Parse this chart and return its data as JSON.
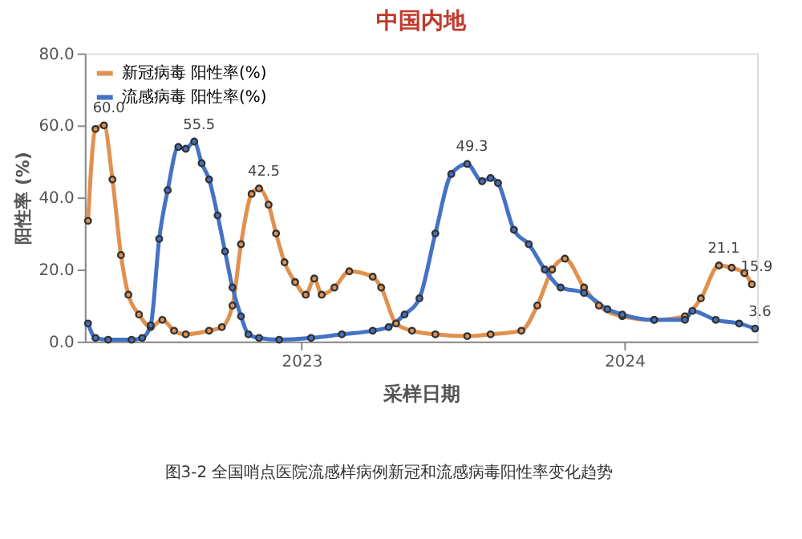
{
  "chart_data": {
    "type": "line",
    "title": "中国内地",
    "xlabel": "采样日期",
    "ylabel": "阳性率 (%)",
    "annotations": [
      "图3-2 全国哨点医院流感样病例新冠和流感病毒阳性率变化趋势"
    ],
    "xlim": [
      "2022-12-10",
      "2024-09-03"
    ],
    "xticks": [
      {
        "value": "2023-07-02",
        "label": "2023"
      },
      {
        "value": "2024-05-01",
        "label": "2024"
      }
    ],
    "ylim": [
      0,
      80
    ],
    "yticks": [
      {
        "value": 0,
        "label": "0.0"
      },
      {
        "value": 20,
        "label": "20.0"
      },
      {
        "value": 40,
        "label": "40.0"
      },
      {
        "value": 60,
        "label": "60.0"
      },
      {
        "value": 80,
        "label": "80.0"
      }
    ],
    "grid": false,
    "legend": "top left",
    "marker": "circle",
    "line_style": "solid",
    "series": [
      {
        "name": "新冠病毒  阳性率(%)",
        "color": "#e0914f",
        "x": [
          "2022-12-13",
          "2022-12-20",
          "2022-12-28",
          "2023-01-05",
          "2023-01-13",
          "2023-01-20",
          "2023-01-30",
          "2023-02-10",
          "2023-02-21",
          "2023-03-04",
          "2023-03-15",
          "2023-04-06",
          "2023-04-18",
          "2023-04-28",
          "2023-05-06",
          "2023-05-16",
          "2023-05-23",
          "2023-06-01",
          "2023-06-08",
          "2023-06-16",
          "2023-06-26",
          "2023-07-06",
          "2023-07-14",
          "2023-07-21",
          "2023-08-02",
          "2023-08-16",
          "2023-09-07",
          "2023-09-15",
          "2023-09-29",
          "2023-10-14",
          "2023-11-05",
          "2023-12-05",
          "2023-12-27",
          "2024-01-25",
          "2024-02-09",
          "2024-02-23",
          "2024-03-06",
          "2024-03-24",
          "2024-04-07",
          "2024-04-29",
          "2024-05-29",
          "2024-06-27",
          "2024-07-12",
          "2024-07-29",
          "2024-08-10",
          "2024-08-22",
          "2024-08-29"
        ],
        "values": [
          33.5,
          59,
          60.0,
          45,
          24,
          13,
          7.5,
          4,
          6,
          3,
          2,
          3,
          4,
          10,
          27,
          41,
          42.5,
          38,
          30,
          22,
          16.5,
          13,
          17.5,
          13,
          15,
          19.5,
          18,
          15,
          5,
          3,
          2,
          1.5,
          2,
          3,
          10,
          20,
          23,
          15,
          10,
          7,
          6,
          7,
          12,
          21.1,
          20.5,
          19,
          15.9
        ],
        "value_labels": [
          null,
          null,
          "60.0",
          null,
          null,
          null,
          null,
          null,
          null,
          null,
          null,
          null,
          null,
          null,
          null,
          null,
          "42.5",
          null,
          null,
          null,
          null,
          null,
          null,
          null,
          null,
          null,
          null,
          null,
          null,
          null,
          null,
          null,
          null,
          null,
          null,
          null,
          null,
          null,
          null,
          null,
          null,
          null,
          null,
          "21.1",
          null,
          null,
          "15.9"
        ]
      },
      {
        "name": "流感病毒  阳性率(%)",
        "color": "#4472c4",
        "x": [
          "2022-12-13",
          "2022-12-20",
          "2023-01-01",
          "2023-01-23",
          "2023-02-02",
          "2023-02-10",
          "2023-02-18",
          "2023-02-26",
          "2023-03-08",
          "2023-03-15",
          "2023-03-23",
          "2023-03-30",
          "2023-04-06",
          "2023-04-14",
          "2023-04-21",
          "2023-04-28",
          "2023-05-06",
          "2023-05-13",
          "2023-05-23",
          "2023-06-11",
          "2023-07-11",
          "2023-08-09",
          "2023-09-07",
          "2023-09-22",
          "2023-10-07",
          "2023-10-21",
          "2023-11-05",
          "2023-11-20",
          "2023-12-05",
          "2023-12-19",
          "2023-12-27",
          "2024-01-03",
          "2024-01-18",
          "2024-02-01",
          "2024-02-16",
          "2024-03-02",
          "2024-03-24",
          "2024-04-15",
          "2024-04-29",
          "2024-05-29",
          "2024-06-27",
          "2024-07-04",
          "2024-07-26",
          "2024-08-17",
          "2024-09-01"
        ],
        "values": [
          5,
          1,
          0.5,
          0.5,
          1,
          4.5,
          28.5,
          42,
          54,
          53.5,
          55.5,
          49.5,
          45,
          35,
          25,
          15,
          7,
          2,
          1,
          0.5,
          1,
          2,
          3,
          4,
          7.5,
          12,
          30,
          46.5,
          49.3,
          44.5,
          45.4,
          44,
          31,
          27,
          20,
          15,
          13.5,
          9,
          7.5,
          6,
          6,
          8.5,
          6,
          5,
          3.6
        ],
        "value_labels": [
          null,
          null,
          null,
          null,
          null,
          null,
          null,
          null,
          null,
          null,
          "55.5",
          null,
          null,
          null,
          null,
          null,
          null,
          null,
          null,
          null,
          null,
          null,
          null,
          null,
          null,
          null,
          null,
          null,
          "49.3",
          null,
          null,
          null,
          null,
          null,
          null,
          null,
          null,
          null,
          null,
          null,
          null,
          null,
          null,
          null,
          "3.6"
        ]
      }
    ]
  }
}
